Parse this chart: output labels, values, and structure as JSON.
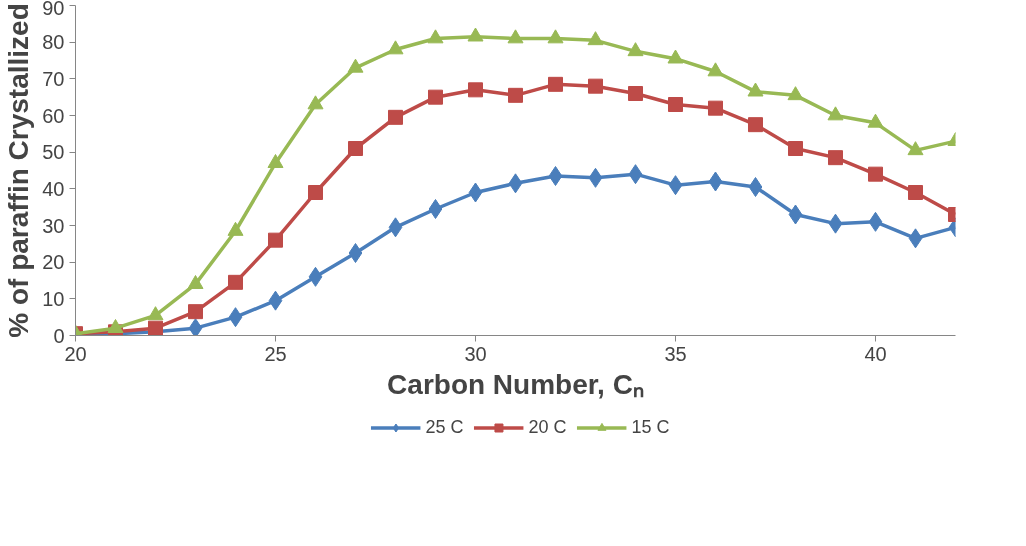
{
  "chart_data": {
    "type": "line",
    "xlabel": "Carbon Number, Cₙ",
    "ylabel": "% of paraffin Crystallized",
    "x": [
      20,
      21,
      22,
      23,
      24,
      25,
      26,
      27,
      28,
      29,
      30,
      31,
      32,
      33,
      34,
      35,
      36,
      37,
      38,
      39,
      40,
      41,
      42
    ],
    "xlim": [
      20,
      42
    ],
    "xticks": [
      20,
      25,
      30,
      35,
      40
    ],
    "ylim": [
      0,
      90
    ],
    "yticks": [
      0,
      10,
      20,
      30,
      40,
      50,
      60,
      70,
      80,
      90
    ],
    "grid": false,
    "legend": "bottom",
    "line_style": "solid",
    "series": [
      {
        "name": "25 C",
        "color": "#4a7ebb",
        "marker": "diamond",
        "values": [
          0,
          0.5,
          1,
          2,
          5,
          9.5,
          16,
          22.5,
          29.5,
          34.5,
          39,
          41.5,
          43.5,
          43,
          44,
          41,
          42,
          40.5,
          33,
          30.5,
          31,
          26.5,
          29.5
        ]
      },
      {
        "name": "20 C",
        "color": "#be4b48",
        "marker": "square",
        "values": [
          0.5,
          1,
          2,
          6.5,
          14.5,
          26,
          39,
          51,
          59.5,
          65,
          67,
          65.5,
          68.5,
          68,
          66,
          63,
          62,
          57.5,
          51,
          48.5,
          44,
          39,
          33
        ]
      },
      {
        "name": "15 C",
        "color": "#98b954",
        "marker": "triangle",
        "values": [
          0.5,
          2,
          5.5,
          14,
          28.5,
          47,
          63,
          73,
          78,
          81,
          81.5,
          81,
          81,
          80.5,
          77.5,
          75.5,
          72,
          66.5,
          65.5,
          60,
          58,
          50.5,
          53
        ]
      }
    ]
  }
}
